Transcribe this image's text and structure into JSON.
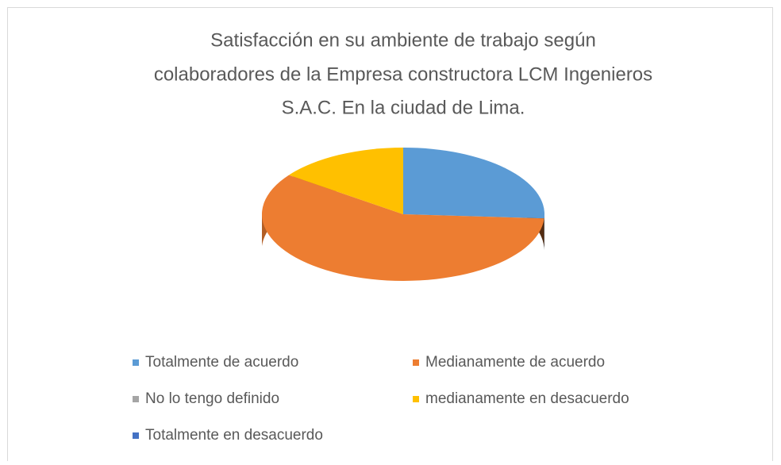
{
  "chart_data": {
    "type": "pie3d",
    "title": [
      "Satisfacción en su ambiente de trabajo según",
      "colaboradores de la Empresa constructora LCM Ingenieros",
      "S.A.C. En la ciudad de Lima."
    ],
    "categories": [
      "Totalmente de acuerdo",
      "Medianamente de acuerdo",
      "No lo tengo definido",
      "medianamente en desacuerdo",
      "Totalmente en desacuerdo"
    ],
    "values": [
      26,
      59,
      0,
      15,
      0
    ],
    "colors": [
      "#5b9bd5",
      "#ed7d31",
      "#a5a5a5",
      "#ffc000",
      "#4472c4"
    ],
    "legend": "bottom"
  }
}
